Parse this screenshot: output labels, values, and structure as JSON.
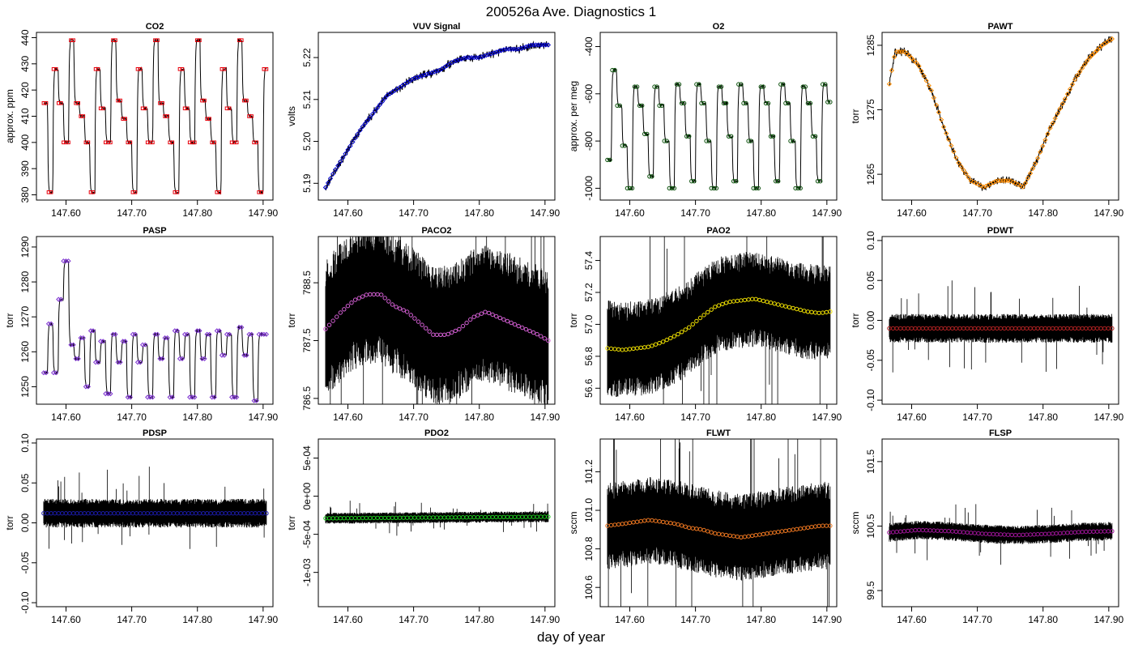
{
  "title": "200526a   Ave. Diagnostics 1",
  "xlabel": "day of year",
  "chart_data": [
    {
      "type": "line",
      "title": "CO2",
      "ylabel": "approx. ppm",
      "ylim": [
        378,
        442
      ],
      "yticks": [
        380,
        390,
        400,
        410,
        420,
        430,
        440
      ],
      "ytick_labels": [
        "380",
        "390",
        "400",
        "410",
        "420",
        "430",
        "440"
      ],
      "xlim": [
        147.555,
        147.915
      ],
      "xticks": [
        147.6,
        147.7,
        147.8,
        147.9
      ],
      "xtick_labels": [
        "147.60",
        "147.70",
        "147.80",
        "147.90"
      ],
      "marker_color": "#e8000b",
      "marker": "square",
      "data_start": 147.566,
      "data_end": 147.905,
      "series": [
        {
          "name": "step-pattern",
          "x": [
            147.566,
            147.572,
            147.58,
            147.588,
            147.596,
            147.604,
            147.612,
            147.62,
            147.628,
            147.636,
            147.644,
            147.652,
            147.66,
            147.668,
            147.676,
            147.684,
            147.692,
            147.7,
            147.708,
            147.716,
            147.724,
            147.732,
            147.74,
            147.748,
            147.756,
            147.764,
            147.772,
            147.78,
            147.788,
            147.796,
            147.804,
            147.812,
            147.82,
            147.828,
            147.836,
            147.844,
            147.852,
            147.86,
            147.868,
            147.876,
            147.884,
            147.892,
            147.9,
            147.905
          ],
          "values": [
            415,
            381,
            428,
            415,
            400,
            439,
            415,
            410,
            400,
            381,
            428,
            413,
            400,
            439,
            416,
            409,
            400,
            381,
            428,
            413,
            400,
            439,
            415,
            410,
            400,
            381,
            428,
            413,
            400,
            439,
            416,
            409,
            400,
            381,
            428,
            413,
            400,
            439,
            416,
            410,
            400,
            381,
            428,
            428
          ]
        }
      ]
    },
    {
      "type": "line",
      "title": "VUV Signal",
      "ylabel": "volts",
      "ylim": [
        5.186,
        5.226
      ],
      "yticks": [
        5.19,
        5.2,
        5.21,
        5.22
      ],
      "ytick_labels": [
        "5.19",
        "5.20",
        "5.21",
        "5.22"
      ],
      "xlim": [
        147.555,
        147.915
      ],
      "xticks": [
        147.6,
        147.7,
        147.8,
        147.9
      ],
      "xtick_labels": [
        "147.60",
        "147.70",
        "147.80",
        "147.90"
      ],
      "marker_color": "#0000cc",
      "marker": "diamond",
      "data_start": 147.566,
      "data_end": 147.905,
      "series": [
        {
          "name": "signal",
          "x": [
            147.566,
            147.58,
            147.6,
            147.62,
            147.64,
            147.66,
            147.68,
            147.7,
            147.72,
            147.74,
            147.76,
            147.78,
            147.8,
            147.82,
            147.84,
            147.86,
            147.88,
            147.905
          ],
          "values": [
            5.189,
            5.193,
            5.198,
            5.203,
            5.207,
            5.211,
            5.213,
            5.215,
            5.216,
            5.217,
            5.219,
            5.22,
            5.22,
            5.221,
            5.222,
            5.222,
            5.223,
            5.223
          ]
        }
      ]
    },
    {
      "type": "line",
      "title": "O2",
      "ylabel": "approx. per meg",
      "ylim": [
        -1050,
        -340
      ],
      "yticks": [
        -1000,
        -800,
        -600,
        -400
      ],
      "ytick_labels": [
        "-1000",
        "-800",
        "-600",
        "-400"
      ],
      "xlim": [
        147.555,
        147.915
      ],
      "xticks": [
        147.6,
        147.7,
        147.8,
        147.9
      ],
      "xtick_labels": [
        "147.60",
        "147.70",
        "147.80",
        "147.90"
      ],
      "marker_color": "#0a4f0a",
      "marker": "circle",
      "data_start": 147.566,
      "data_end": 147.905,
      "series": [
        {
          "name": "step-pattern",
          "x": [
            147.566,
            147.572,
            147.58,
            147.588,
            147.596,
            147.604,
            147.612,
            147.62,
            147.628,
            147.636,
            147.644,
            147.652,
            147.66,
            147.668,
            147.676,
            147.684,
            147.692,
            147.7,
            147.708,
            147.716,
            147.724,
            147.732,
            147.74,
            147.748,
            147.756,
            147.764,
            147.772,
            147.78,
            147.788,
            147.796,
            147.804,
            147.812,
            147.82,
            147.828,
            147.836,
            147.844,
            147.852,
            147.86,
            147.868,
            147.876,
            147.884,
            147.892,
            147.9,
            147.905
          ],
          "values": [
            -880,
            -500,
            -650,
            -820,
            -1000,
            -570,
            -650,
            -770,
            -950,
            -570,
            -650,
            -800,
            -1000,
            -560,
            -640,
            -780,
            -970,
            -560,
            -640,
            -800,
            -1000,
            -570,
            -640,
            -780,
            -970,
            -560,
            -640,
            -800,
            -1000,
            -570,
            -640,
            -780,
            -970,
            -560,
            -640,
            -800,
            -1000,
            -570,
            -640,
            -780,
            -970,
            -560,
            -635,
            -635
          ]
        }
      ]
    },
    {
      "type": "line",
      "title": "PAWT",
      "ylabel": "torr",
      "ylim": [
        1261,
        1287
      ],
      "yticks": [
        1265,
        1275,
        1285
      ],
      "ytick_labels": [
        "1265",
        "1275",
        "1285"
      ],
      "xlim": [
        147.555,
        147.915
      ],
      "xticks": [
        147.6,
        147.7,
        147.8,
        147.9
      ],
      "xtick_labels": [
        "147.60",
        "147.70",
        "147.80",
        "147.90"
      ],
      "marker_color": "#ff8c00",
      "marker": "diamond",
      "data_start": 147.566,
      "data_end": 147.905,
      "series": [
        {
          "name": "pressure",
          "x": [
            147.566,
            147.575,
            147.59,
            147.61,
            147.63,
            147.65,
            147.67,
            147.69,
            147.71,
            147.73,
            147.75,
            147.77,
            147.79,
            147.81,
            147.83,
            147.85,
            147.87,
            147.89,
            147.905
          ],
          "values": [
            1279,
            1284,
            1284,
            1282,
            1278,
            1272,
            1267,
            1264,
            1263,
            1264,
            1264,
            1263,
            1267,
            1272,
            1276,
            1280,
            1283,
            1285,
            1286
          ]
        }
      ]
    },
    {
      "type": "line",
      "title": "PASP",
      "ylabel": "torr",
      "ylim": [
        1245,
        1293
      ],
      "yticks": [
        1250,
        1260,
        1270,
        1280,
        1290
      ],
      "ytick_labels": [
        "1250",
        "1260",
        "1270",
        "1280",
        "1290"
      ],
      "xlim": [
        147.555,
        147.915
      ],
      "xticks": [
        147.6,
        147.7,
        147.8,
        147.9
      ],
      "xtick_labels": [
        "147.60",
        "147.70",
        "147.80",
        "147.90"
      ],
      "marker_color": "#7b2fd0",
      "marker": "diamond",
      "data_start": 147.566,
      "data_end": 147.905,
      "series": [
        {
          "name": "step-pattern",
          "x": [
            147.566,
            147.572,
            147.58,
            147.588,
            147.596,
            147.604,
            147.612,
            147.62,
            147.628,
            147.636,
            147.644,
            147.652,
            147.66,
            147.668,
            147.676,
            147.684,
            147.692,
            147.7,
            147.708,
            147.716,
            147.724,
            147.732,
            147.74,
            147.748,
            147.756,
            147.764,
            147.772,
            147.78,
            147.788,
            147.796,
            147.804,
            147.812,
            147.82,
            147.828,
            147.836,
            147.844,
            147.852,
            147.86,
            147.868,
            147.876,
            147.884,
            147.892,
            147.9,
            147.905
          ],
          "values": [
            1254,
            1268,
            1254,
            1275,
            1286,
            1262,
            1258,
            1264,
            1250,
            1266,
            1257,
            1263,
            1248,
            1265,
            1257,
            1263,
            1247,
            1265,
            1257,
            1262,
            1247,
            1265,
            1258,
            1264,
            1247,
            1266,
            1258,
            1265,
            1247,
            1266,
            1258,
            1265,
            1247,
            1266,
            1259,
            1265,
            1247,
            1267,
            1259,
            1265,
            1246,
            1265,
            1265,
            1265
          ]
        }
      ]
    },
    {
      "type": "line",
      "title": "PACO2",
      "ylabel": "torr",
      "ylim": [
        786.4,
        789.3
      ],
      "yticks": [
        786.5,
        787.5,
        788.5
      ],
      "ytick_labels": [
        "786.5",
        "787.5",
        "788.5"
      ],
      "xlim": [
        147.555,
        147.915
      ],
      "xticks": [
        147.6,
        147.7,
        147.8,
        147.9
      ],
      "xtick_labels": [
        "147.60",
        "147.70",
        "147.80",
        "147.90"
      ],
      "marker_color": "#d45fd4",
      "marker": "circle",
      "noise_band": [
        786.9,
        788.9
      ],
      "data_start": 147.566,
      "data_end": 147.905,
      "series": [
        {
          "name": "average",
          "x": [
            147.566,
            147.59,
            147.61,
            147.63,
            147.65,
            147.67,
            147.69,
            147.71,
            147.73,
            147.75,
            147.77,
            147.79,
            147.81,
            147.83,
            147.85,
            147.87,
            147.89,
            147.905
          ],
          "values": [
            787.7,
            788.0,
            788.2,
            788.3,
            788.3,
            788.1,
            788.0,
            787.8,
            787.6,
            787.6,
            787.7,
            787.9,
            788.0,
            787.9,
            787.8,
            787.7,
            787.6,
            787.5
          ]
        }
      ]
    },
    {
      "type": "line",
      "title": "PAO2",
      "ylabel": "torr",
      "ylim": [
        56.5,
        57.55
      ],
      "yticks": [
        56.6,
        56.8,
        57.0,
        57.2,
        57.4
      ],
      "ytick_labels": [
        "56.6",
        "56.8",
        "57.0",
        "57.2",
        "57.4"
      ],
      "xlim": [
        147.555,
        147.915
      ],
      "xticks": [
        147.6,
        147.7,
        147.8,
        147.9
      ],
      "xtick_labels": [
        "147.60",
        "147.70",
        "147.80",
        "147.90"
      ],
      "marker_color": "#f0e000",
      "marker": "circle",
      "noise_band": [
        56.65,
        57.15
      ],
      "data_start": 147.566,
      "data_end": 147.905,
      "series": [
        {
          "name": "average",
          "x": [
            147.566,
            147.59,
            147.61,
            147.63,
            147.65,
            147.67,
            147.69,
            147.71,
            147.73,
            147.75,
            147.77,
            147.79,
            147.81,
            147.83,
            147.85,
            147.87,
            147.89,
            147.905
          ],
          "values": [
            56.85,
            56.84,
            56.85,
            56.86,
            56.89,
            56.93,
            56.98,
            57.05,
            57.11,
            57.14,
            57.15,
            57.16,
            57.14,
            57.12,
            57.1,
            57.08,
            57.07,
            57.08
          ]
        }
      ]
    },
    {
      "type": "line",
      "title": "PDWT",
      "ylabel": "torr",
      "ylim": [
        -0.105,
        0.105
      ],
      "yticks": [
        -0.1,
        -0.05,
        0.0,
        0.05,
        0.1
      ],
      "ytick_labels": [
        "-0.10",
        "-0.05",
        "0.00",
        "0.05",
        "0.10"
      ],
      "xlim": [
        147.555,
        147.915
      ],
      "xticks": [
        147.6,
        147.7,
        147.8,
        147.9
      ],
      "xtick_labels": [
        "147.60",
        "147.70",
        "147.80",
        "147.90"
      ],
      "marker_color": "#b22222",
      "marker": "circle",
      "noise_band": [
        -0.025,
        0.005
      ],
      "data_start": 147.566,
      "data_end": 147.905,
      "series": [
        {
          "name": "average",
          "x": [
            147.566,
            147.905
          ],
          "values": [
            -0.01,
            -0.01
          ]
        }
      ]
    },
    {
      "type": "line",
      "title": "PDSP",
      "ylabel": "torr",
      "ylim": [
        -0.105,
        0.105
      ],
      "yticks": [
        -0.1,
        -0.05,
        0.0,
        0.05,
        0.1
      ],
      "ytick_labels": [
        "-0.10",
        "-0.05",
        "0.00",
        "0.05",
        "0.10"
      ],
      "xlim": [
        147.555,
        147.915
      ],
      "xticks": [
        147.6,
        147.7,
        147.8,
        147.9
      ],
      "xtick_labels": [
        "147.60",
        "147.70",
        "147.80",
        "147.90"
      ],
      "marker_color": "#1a1aa8",
      "marker": "circle",
      "noise_band": [
        -0.003,
        0.027
      ],
      "data_start": 147.566,
      "data_end": 147.905,
      "series": [
        {
          "name": "average",
          "x": [
            147.566,
            147.905
          ],
          "values": [
            0.012,
            0.012
          ]
        }
      ]
    },
    {
      "type": "line",
      "title": "PDO2",
      "ylabel": "torr",
      "ylim": [
        -0.00145,
        0.00075
      ],
      "yticks": [
        -0.001,
        -0.0005,
        0.0,
        0.0005
      ],
      "ytick_labels": [
        "-1e-03",
        "-5e-04",
        "0e+00",
        "5e-04"
      ],
      "xlim": [
        147.555,
        147.915
      ],
      "xticks": [
        147.6,
        147.7,
        147.8,
        147.9
      ],
      "xtick_labels": [
        "147.60",
        "147.70",
        "147.80",
        "147.90"
      ],
      "marker_color": "#1fcc1f",
      "marker": "circle",
      "noise_band": [
        -0.00034,
        -0.00022
      ],
      "data_start": 147.566,
      "data_end": 147.905,
      "series": [
        {
          "name": "average",
          "x": [
            147.566,
            147.905
          ],
          "values": [
            -0.00029,
            -0.00027
          ]
        }
      ]
    },
    {
      "type": "line",
      "title": "FLWT",
      "ylabel": "sccm",
      "ylim": [
        100.5,
        101.37
      ],
      "yticks": [
        100.6,
        100.8,
        101.0,
        101.2
      ],
      "ytick_labels": [
        "100.6",
        "100.8",
        "101.0",
        "101.2"
      ],
      "xlim": [
        147.555,
        147.915
      ],
      "xticks": [
        147.6,
        147.7,
        147.8,
        147.9
      ],
      "xtick_labels": [
        "147.60",
        "147.70",
        "147.80",
        "147.90"
      ],
      "marker_color": "#f07820",
      "marker": "circle",
      "noise_band": [
        100.72,
        101.1
      ],
      "data_start": 147.566,
      "data_end": 147.905,
      "series": [
        {
          "name": "average",
          "x": [
            147.566,
            147.59,
            147.61,
            147.63,
            147.65,
            147.67,
            147.69,
            147.71,
            147.73,
            147.75,
            147.77,
            147.79,
            147.81,
            147.83,
            147.85,
            147.87,
            147.89,
            147.905
          ],
          "values": [
            100.92,
            100.93,
            100.94,
            100.95,
            100.94,
            100.93,
            100.91,
            100.9,
            100.88,
            100.87,
            100.86,
            100.87,
            100.88,
            100.89,
            100.9,
            100.91,
            100.92,
            100.92
          ]
        }
      ]
    },
    {
      "type": "line",
      "title": "FLSP",
      "ylabel": "sccm",
      "ylim": [
        99.25,
        101.85
      ],
      "yticks": [
        99.5,
        100.5,
        101.5
      ],
      "ytick_labels": [
        "99.5",
        "100.5",
        "101.5"
      ],
      "xlim": [
        147.555,
        147.915
      ],
      "xticks": [
        147.6,
        147.7,
        147.8,
        147.9
      ],
      "xtick_labels": [
        "147.60",
        "147.70",
        "147.80",
        "147.90"
      ],
      "marker_color": "#a0149a",
      "marker": "circle",
      "noise_band": [
        100.28,
        100.52
      ],
      "data_start": 147.566,
      "data_end": 147.905,
      "series": [
        {
          "name": "average",
          "x": [
            147.566,
            147.61,
            147.66,
            147.71,
            147.76,
            147.81,
            147.86,
            147.905
          ],
          "values": [
            100.4,
            100.44,
            100.42,
            100.38,
            100.36,
            100.38,
            100.41,
            100.42
          ]
        }
      ]
    }
  ]
}
